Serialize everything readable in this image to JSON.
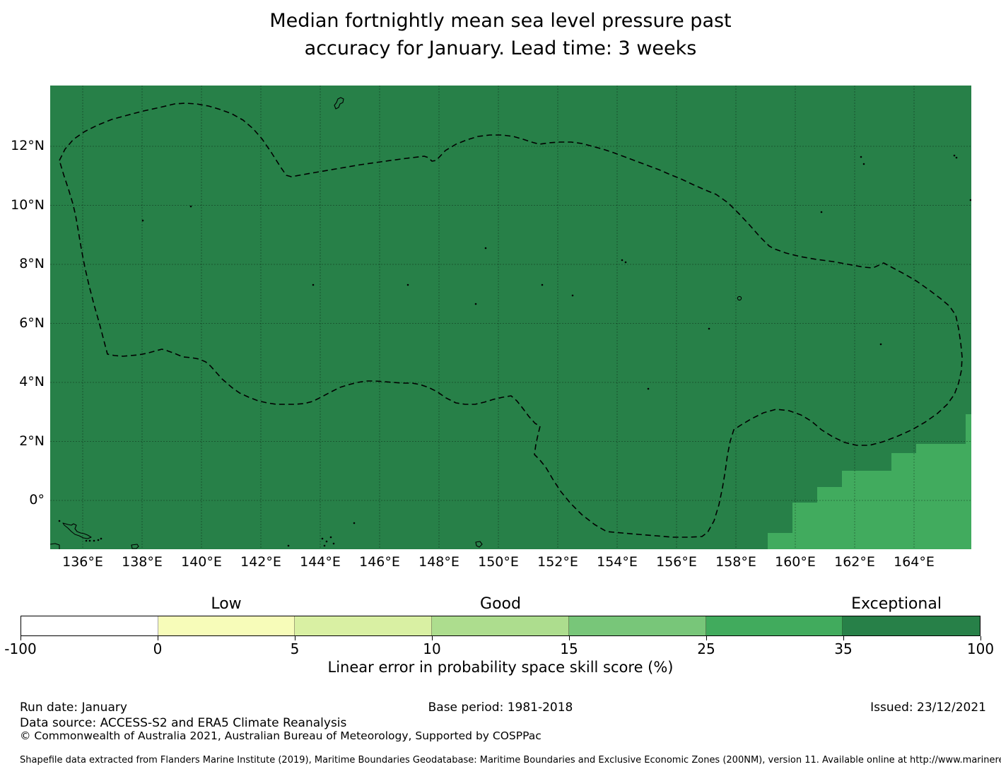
{
  "title": {
    "line1": "Median fortnightly mean sea level pressure past",
    "line2": "accuracy for January. Lead time: 3 weeks"
  },
  "map": {
    "x_tick_labels": [
      "136°E",
      "138°E",
      "140°E",
      "142°E",
      "144°E",
      "146°E",
      "148°E",
      "150°E",
      "152°E",
      "154°E",
      "156°E",
      "158°E",
      "160°E",
      "162°E",
      "164°E"
    ],
    "y_tick_labels": [
      "12°N",
      "10°N",
      "8°N",
      "6°N",
      "4°N",
      "2°N",
      "0°"
    ]
  },
  "colors": {
    "map_fill_exceptional": "#278048",
    "map_fill_25_35": "#41ab5e",
    "grid": "rgba(0,0,0,0.42)",
    "boundary": "#000000",
    "coastline": "#000000"
  },
  "colorbar": {
    "tick_labels": [
      "-100",
      "0",
      "5",
      "10",
      "15",
      "25",
      "35",
      "100"
    ],
    "segment_colors": [
      "#ffffff",
      "#f7fcb9",
      "#d9f0a3",
      "#addd8e",
      "#78c679",
      "#41ab5d",
      "#278048"
    ],
    "category_labels": [
      {
        "text": "Low",
        "segment_index": 1
      },
      {
        "text": "Good",
        "segment_index": 3
      },
      {
        "text": "Exceptional",
        "segment_index": 6
      }
    ],
    "axis_label": "Linear error in probability space skill score (%)"
  },
  "footer": {
    "run_date": "Run date: January",
    "base_period": "Base period: 1981-2018",
    "issued": "Issued: 23/12/2021",
    "data_source": "Data source: ACCESS-S2 and ERA5 Climate Reanalysis",
    "copyright": "© Commonwealth of Australia 2021, Australian Bureau of Meteorology, Supported by COSPPac",
    "shapefile": "Shapefile data extracted from Flanders Marine Institute (2019), Maritime Boundaries Geodatabase: Maritime Boundaries and Exclusive Economic Zones (200NM), version 11. Available online at http://www.marineregions.org/."
  },
  "chart_data": {
    "type": "heatmap",
    "title": "Median fortnightly mean sea level pressure past accuracy for January. Lead time: 3 weeks",
    "x_axis": {
      "tick_labels": [
        "136°E",
        "138°E",
        "140°E",
        "142°E",
        "144°E",
        "146°E",
        "148°E",
        "150°E",
        "152°E",
        "154°E",
        "156°E",
        "158°E",
        "160°E",
        "162°E",
        "164°E"
      ],
      "range_deg_east": [
        134.9,
        165.9
      ]
    },
    "y_axis": {
      "tick_labels": [
        "12°N",
        "10°N",
        "8°N",
        "6°N",
        "4°N",
        "2°N",
        "0°"
      ],
      "range_deg_north": [
        -1.65,
        14.05
      ]
    },
    "colorbar": {
      "label": "Linear error in probability space skill score (%)",
      "bin_edges": [
        -100,
        0,
        5,
        10,
        15,
        25,
        35,
        100
      ],
      "bin_colors": [
        "#ffffff",
        "#f7fcb9",
        "#d9f0a3",
        "#addd8e",
        "#78c679",
        "#41ab5d",
        "#278048"
      ],
      "category_labels": [
        {
          "text": "Low",
          "over_bin": [
            0,
            5
          ]
        },
        {
          "text": "Good",
          "over_bin": [
            10,
            15
          ]
        },
        {
          "text": "Exceptional",
          "over_bin": [
            35,
            100
          ]
        }
      ],
      "orientation": "horizontal"
    },
    "values": [
      {
        "bin": "35 to 100 (Exceptional)",
        "coverage": "nearly the entire map domain"
      },
      {
        "bin": "25 to 35",
        "coverage": "stair-stepped block region in the southeast corner, roughly east of 159°E and south of about 2.5°N"
      }
    ],
    "overlays": [
      "black dashed maritime-boundary outline enclosing most of the domain",
      "thin black island coastlines and small island dots",
      "2-degree latitude/longitude grid lines"
    ],
    "grid": true,
    "legend_position": "bottom horizontal colorbar"
  }
}
